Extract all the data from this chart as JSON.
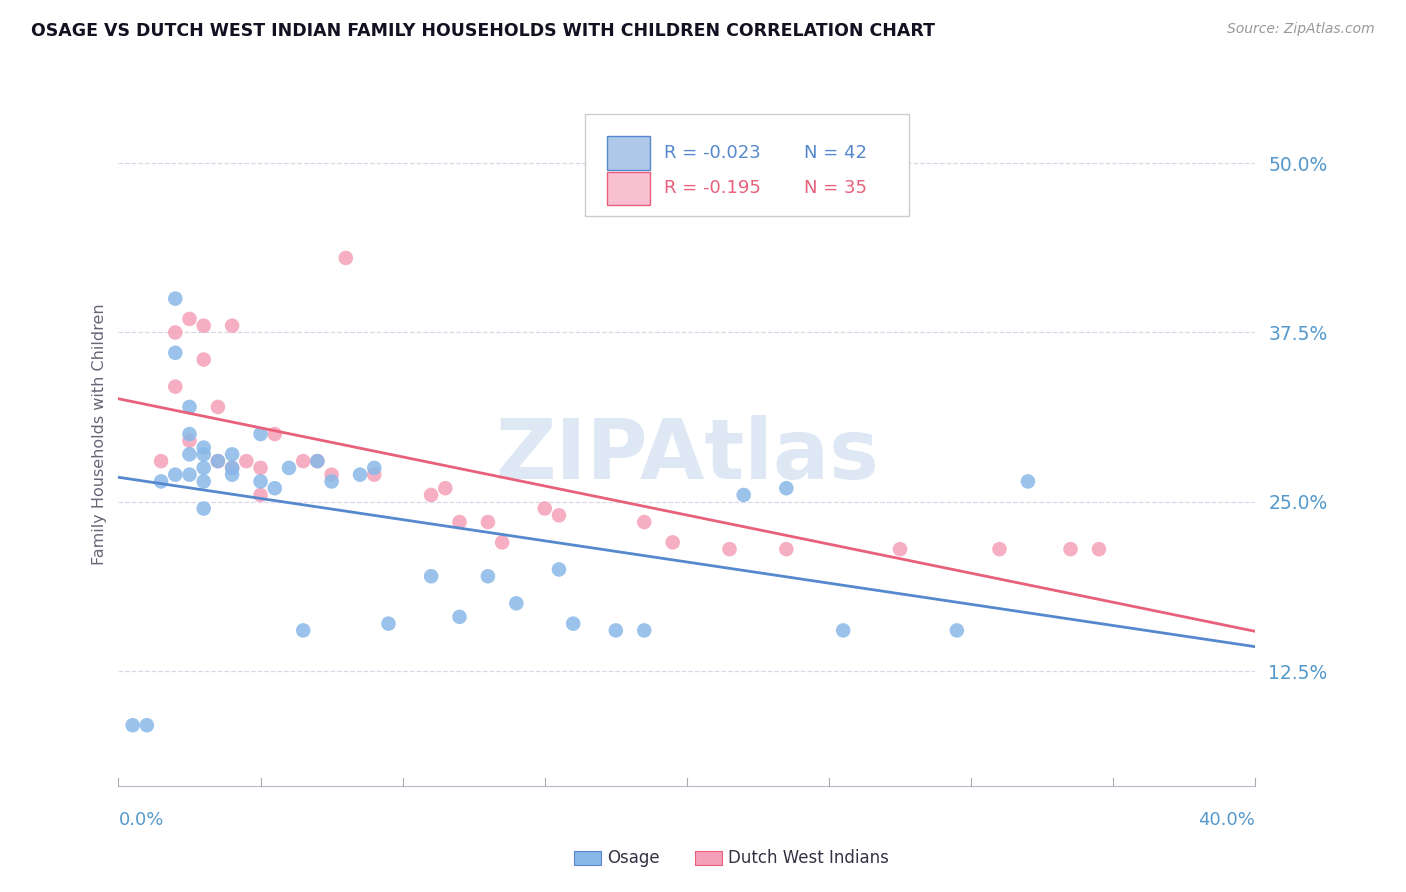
{
  "title": "OSAGE VS DUTCH WEST INDIAN FAMILY HOUSEHOLDS WITH CHILDREN CORRELATION CHART",
  "source": "Source: ZipAtlas.com",
  "ylabel": "Family Households with Children",
  "right_yticklabels": [
    "12.5%",
    "25.0%",
    "37.5%",
    "50.0%"
  ],
  "right_yticks": [
    0.125,
    0.25,
    0.375,
    0.5
  ],
  "legend_top": [
    {
      "R": "-0.023",
      "N": "42",
      "sq_color": "#adc8e8",
      "line_color": "#5588cc"
    },
    {
      "R": "-0.195",
      "N": "35",
      "sq_color": "#f8c0d0",
      "line_color": "#e8607a"
    }
  ],
  "osage_color": "#88b8e8",
  "dwi_color": "#f4a0b8",
  "osage_line_color": "#5588cc",
  "dwi_line_color": "#e8607a",
  "background_color": "#ffffff",
  "grid_color": "#d8d8e8",
  "title_color": "#111122",
  "axis_label_color": "#5599cc",
  "watermark_color": "#dde8f4",
  "osage_x": [
    0.005,
    0.01,
    0.015,
    0.02,
    0.02,
    0.02,
    0.025,
    0.025,
    0.025,
    0.025,
    0.03,
    0.03,
    0.03,
    0.03,
    0.03,
    0.035,
    0.04,
    0.04,
    0.04,
    0.05,
    0.05,
    0.055,
    0.06,
    0.065,
    0.07,
    0.075,
    0.085,
    0.09,
    0.095,
    0.11,
    0.12,
    0.13,
    0.14,
    0.155,
    0.16,
    0.175,
    0.185,
    0.22,
    0.235,
    0.255,
    0.295,
    0.32
  ],
  "osage_y": [
    0.085,
    0.085,
    0.265,
    0.4,
    0.36,
    0.27,
    0.32,
    0.3,
    0.285,
    0.27,
    0.29,
    0.285,
    0.275,
    0.265,
    0.245,
    0.28,
    0.285,
    0.275,
    0.27,
    0.3,
    0.265,
    0.26,
    0.275,
    0.155,
    0.28,
    0.265,
    0.27,
    0.275,
    0.16,
    0.195,
    0.165,
    0.195,
    0.175,
    0.2,
    0.16,
    0.155,
    0.155,
    0.255,
    0.26,
    0.155,
    0.155,
    0.265
  ],
  "dwi_x": [
    0.015,
    0.02,
    0.02,
    0.025,
    0.025,
    0.03,
    0.03,
    0.035,
    0.035,
    0.04,
    0.04,
    0.045,
    0.05,
    0.05,
    0.055,
    0.065,
    0.07,
    0.075,
    0.08,
    0.09,
    0.11,
    0.115,
    0.12,
    0.13,
    0.135,
    0.15,
    0.155,
    0.185,
    0.195,
    0.215,
    0.235,
    0.275,
    0.31,
    0.335,
    0.345
  ],
  "dwi_y": [
    0.28,
    0.375,
    0.335,
    0.385,
    0.295,
    0.38,
    0.355,
    0.32,
    0.28,
    0.38,
    0.275,
    0.28,
    0.275,
    0.255,
    0.3,
    0.28,
    0.28,
    0.27,
    0.43,
    0.27,
    0.255,
    0.26,
    0.235,
    0.235,
    0.22,
    0.245,
    0.24,
    0.235,
    0.22,
    0.215,
    0.215,
    0.215,
    0.215,
    0.215,
    0.215
  ],
  "xlim": [
    0.0,
    0.4
  ],
  "ylim": [
    0.04,
    0.56
  ],
  "figsize": [
    14.06,
    8.92
  ],
  "dpi": 100
}
